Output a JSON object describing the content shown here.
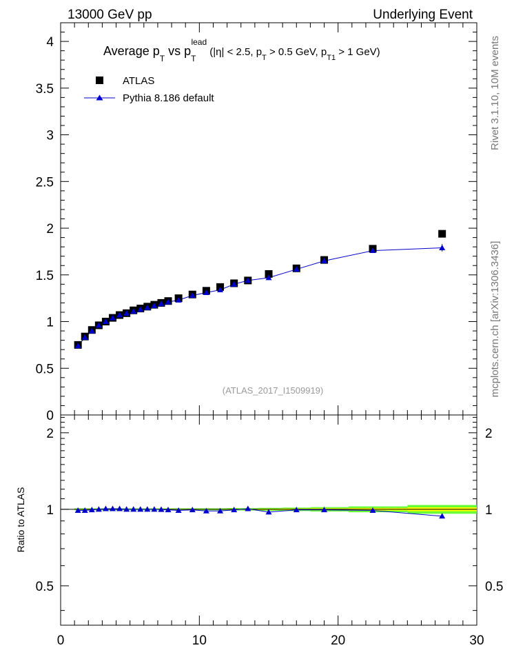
{
  "header": {
    "left": "13000 GeV pp",
    "right": "Underlying Event"
  },
  "side": {
    "rivet": "Rivet 3.1.10,  10M events",
    "mcplots": "mcplots.cern.ch [arXiv:1306.3436]"
  },
  "chart_data": [
    {
      "type": "scatter",
      "title": {
        "main": "Average p",
        "main_sub": "T",
        "vs": " vs p",
        "vs_sub": "T",
        "vs_sup": "lead",
        "cond_1": " (|η| < 2.5, p",
        "cond_1_sub": "T",
        "cond_2": " > 0.5 GeV, p",
        "cond_2_sub": "T1",
        "cond_3": " > 1 GeV)"
      },
      "watermark": "(ATLAS_2017_I1509919)",
      "legend_placement": "top-left",
      "xlim": [
        0,
        30
      ],
      "ylim": [
        0,
        4.2
      ],
      "y_ticks": [
        "0",
        "0.5",
        "1",
        "1.5",
        "2",
        "2.5",
        "3",
        "3.5",
        "4"
      ],
      "colors": {
        "data": "#000000",
        "mc": "#0000cc"
      },
      "series": [
        {
          "name": "ATLAS",
          "x": [
            1.25,
            1.75,
            2.25,
            2.75,
            3.25,
            3.75,
            4.25,
            4.75,
            5.25,
            5.75,
            6.25,
            6.75,
            7.25,
            7.75,
            8.5,
            9.5,
            10.5,
            11.5,
            12.5,
            13.5,
            15,
            17,
            19,
            22.5,
            27.5
          ],
          "y": [
            0.75,
            0.84,
            0.91,
            0.96,
            1.0,
            1.04,
            1.07,
            1.09,
            1.12,
            1.14,
            1.16,
            1.18,
            1.2,
            1.22,
            1.25,
            1.29,
            1.33,
            1.37,
            1.41,
            1.44,
            1.51,
            1.57,
            1.66,
            1.78,
            1.94
          ]
        },
        {
          "name": "Pythia 8.186 default",
          "x": [
            1.25,
            1.75,
            2.25,
            2.75,
            3.25,
            3.75,
            4.25,
            4.75,
            5.25,
            5.75,
            6.25,
            6.75,
            7.25,
            7.75,
            8.5,
            9.5,
            10.5,
            11.5,
            12.5,
            13.5,
            15,
            17,
            19,
            22.5,
            27.5
          ],
          "y": [
            0.74,
            0.83,
            0.9,
            0.96,
            1.0,
            1.04,
            1.07,
            1.09,
            1.11,
            1.13,
            1.15,
            1.17,
            1.19,
            1.21,
            1.23,
            1.28,
            1.31,
            1.34,
            1.4,
            1.44,
            1.47,
            1.56,
            1.65,
            1.76,
            1.79
          ],
          "yerr": [
            0.005,
            0.005,
            0.005,
            0.005,
            0.005,
            0.005,
            0.005,
            0.005,
            0.005,
            0.005,
            0.005,
            0.005,
            0.005,
            0.005,
            0.005,
            0.005,
            0.005,
            0.005,
            0.005,
            0.005,
            0.01,
            0.01,
            0.015,
            0.02,
            0.04
          ]
        }
      ]
    },
    {
      "type": "scatter",
      "ylabel": "Ratio to ATLAS",
      "xlim": [
        0,
        30
      ],
      "ylim": [
        0.35,
        2.35
      ],
      "x_ticks": [
        "0",
        "10",
        "20",
        "30"
      ],
      "y_ticks": [
        "0.5",
        "1",
        "2"
      ],
      "colors": {
        "band_inner": "#ffff00",
        "band_outer": "#66ff33",
        "mc": "#0000cc"
      },
      "band": {
        "x": [
          1.25,
          1.75,
          2.25,
          2.75,
          3.25,
          3.75,
          4.25,
          4.75,
          5.25,
          5.75,
          6.25,
          6.75,
          7.25,
          7.75,
          8.5,
          9.5,
          10.5,
          11.5,
          12.5,
          13.5,
          15,
          17,
          19,
          22.5,
          27.5
        ],
        "half_width": [
          0.004,
          0.004,
          0.004,
          0.004,
          0.004,
          0.004,
          0.004,
          0.004,
          0.004,
          0.004,
          0.004,
          0.004,
          0.004,
          0.004,
          0.004,
          0.004,
          0.004,
          0.004,
          0.005,
          0.005,
          0.006,
          0.007,
          0.009,
          0.012,
          0.018
        ]
      },
      "series": [
        {
          "name": "Pythia 8.186 default",
          "x": [
            1.25,
            1.75,
            2.25,
            2.75,
            3.25,
            3.75,
            4.25,
            4.75,
            5.25,
            5.75,
            6.25,
            6.75,
            7.25,
            7.75,
            8.5,
            9.5,
            10.5,
            11.5,
            12.5,
            13.5,
            15,
            17,
            19,
            22.5,
            27.5
          ],
          "y": [
            0.99,
            0.99,
            0.995,
            1.0,
            1.005,
            1.005,
            1.005,
            1.0,
            1.0,
            1.0,
            1.0,
            1.0,
            0.998,
            0.995,
            0.99,
            0.995,
            0.985,
            0.985,
            0.995,
            1.005,
            0.975,
            0.995,
            0.995,
            0.99,
            0.94
          ]
        }
      ]
    }
  ]
}
